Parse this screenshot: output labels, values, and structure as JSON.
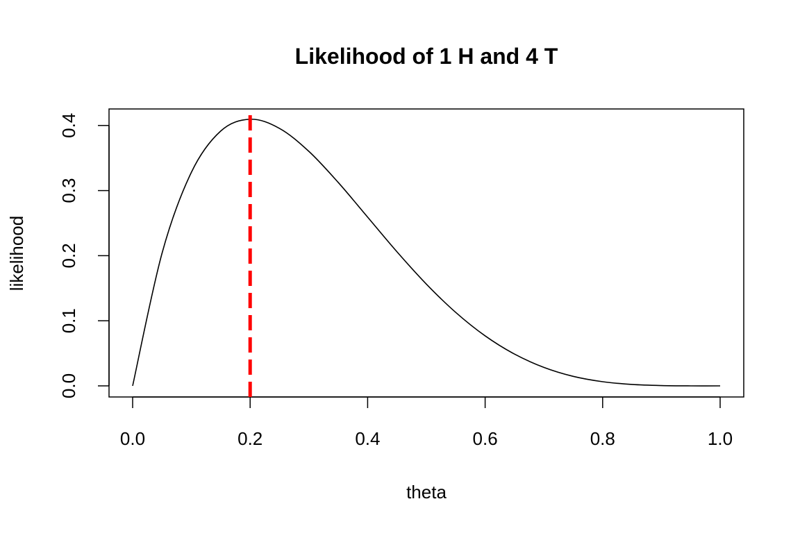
{
  "chart_data": {
    "type": "line",
    "title": "Likelihood of 1 H and 4 T",
    "xlabel": "theta",
    "ylabel": "likelihood",
    "xlim": [
      0,
      1
    ],
    "ylim": [
      0,
      0.41
    ],
    "x_ticks": [
      "0.0",
      "0.2",
      "0.4",
      "0.6",
      "0.8",
      "1.0"
    ],
    "y_ticks": [
      "0.0",
      "0.1",
      "0.2",
      "0.3",
      "0.4"
    ],
    "grid": false,
    "legend": "none",
    "series": [
      {
        "color": "#000000",
        "x": [
          0.0,
          0.05,
          0.1,
          0.15,
          0.2,
          0.25,
          0.3,
          0.35,
          0.4,
          0.45,
          0.5,
          0.55,
          0.6,
          0.65,
          0.7,
          0.75,
          0.8,
          0.85,
          0.9,
          0.95,
          1.0
        ],
        "y": [
          0.0,
          0.2036,
          0.3281,
          0.3915,
          0.4096,
          0.3955,
          0.3602,
          0.3124,
          0.2592,
          0.2059,
          0.1563,
          0.1128,
          0.0768,
          0.0488,
          0.0284,
          0.0146,
          0.0064,
          0.0022,
          0.0005,
          0.0,
          0.0
        ]
      }
    ],
    "reference_line": {
      "x": 0.2,
      "color": "#ff0000",
      "style": "dashed"
    }
  }
}
